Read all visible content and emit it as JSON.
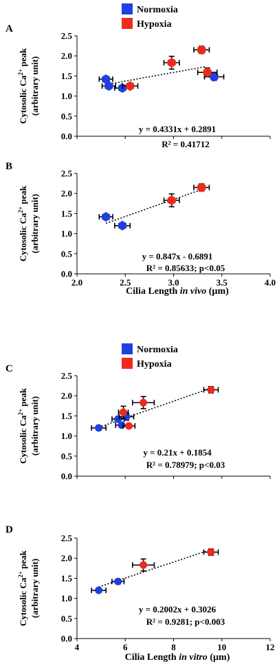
{
  "colors": {
    "normoxia": "#1f3fe0",
    "hypoxia": "#ee2a1a",
    "trend": "#000000"
  },
  "legend": {
    "normoxia": "Normoxia",
    "hypoxia": "Hypoxia"
  },
  "axes": {
    "ylabel_line1_pre": "Cytosolic Ca",
    "ylabel_sup": "2+",
    "ylabel_line1_post": " peak",
    "ylabel_line2": "(arbitrary unit)",
    "xlabel_invivo_pre": "Cilia Length ",
    "xlabel_invivo_em": "in vivo",
    "xlabel_invivo_post": " (µm)",
    "xlabel_invitro_pre": "Cilia Length ",
    "xlabel_invitro_em": "in vitro",
    "xlabel_invitro_post": " (µm)"
  },
  "chart_data": [
    {
      "panel": "A",
      "type": "scatter",
      "xlim": [
        2.0,
        4.0
      ],
      "ylim": [
        0,
        2.5
      ],
      "yticks": [
        "0.0",
        "0.5",
        "1.0",
        "1.5",
        "2.0",
        "2.5"
      ],
      "xticks": [],
      "equation": "y = 0.4331x + 0.2891",
      "r2": "R² = 0.41712",
      "trend": {
        "slope": 0.4331,
        "intercept": 0.2891,
        "x_range": [
          2.3,
          3.33
        ]
      },
      "series": [
        {
          "name": "Normoxia",
          "points": [
            {
              "x": 2.3,
              "y": 1.42,
              "xerr": 0.07,
              "yerr": 0.05
            },
            {
              "x": 2.33,
              "y": 1.25,
              "xerr": 0.07,
              "yerr": 0.04
            },
            {
              "x": 2.47,
              "y": 1.2,
              "xerr": 0.08,
              "yerr": 0.02
            },
            {
              "x": 3.42,
              "y": 1.48,
              "xerr": 0.1,
              "yerr": 0.09
            }
          ]
        },
        {
          "name": "Hypoxia",
          "points": [
            {
              "x": 2.55,
              "y": 1.25,
              "xerr": 0.08,
              "yerr": 0.04
            },
            {
              "x": 2.98,
              "y": 1.83,
              "xerr": 0.08,
              "yerr": 0.16
            },
            {
              "x": 3.29,
              "y": 2.15,
              "xerr": 0.08,
              "yerr": 0.09
            },
            {
              "x": 3.35,
              "y": 1.59,
              "xerr": 0.1,
              "yerr": 0.11
            }
          ]
        }
      ]
    },
    {
      "panel": "B",
      "type": "scatter",
      "xlim": [
        2.0,
        4.0
      ],
      "ylim": [
        0,
        2.5
      ],
      "yticks": [
        "0.0",
        "0.5",
        "1.0",
        "1.5",
        "2.0",
        "2.5"
      ],
      "xticks": [
        "2.0",
        "2.5",
        "3.0",
        "3.5",
        "4.0"
      ],
      "equation": "y = 0.847x - 0.6891",
      "r2": "R² = 0.85633;  p<0.05",
      "trend": {
        "slope": 0.847,
        "intercept": -0.6891,
        "x_range": [
          2.3,
          3.33
        ]
      },
      "series": [
        {
          "name": "Normoxia",
          "points": [
            {
              "x": 2.3,
              "y": 1.42,
              "xerr": 0.07,
              "yerr": 0.05
            },
            {
              "x": 2.47,
              "y": 1.2,
              "xerr": 0.08,
              "yerr": 0.02
            }
          ]
        },
        {
          "name": "Hypoxia",
          "points": [
            {
              "x": 2.98,
              "y": 1.83,
              "xerr": 0.08,
              "yerr": 0.16
            },
            {
              "x": 3.29,
              "y": 2.15,
              "xerr": 0.08,
              "yerr": 0.09
            }
          ]
        }
      ]
    },
    {
      "panel": "C",
      "type": "scatter",
      "xlim": [
        4,
        12
      ],
      "ylim": [
        0,
        2.5
      ],
      "yticks": [
        "0.0",
        "0.5",
        "1.0",
        "1.5",
        "2.0",
        "2.5"
      ],
      "xticks": [],
      "equation": "y = 0.21x + 0.1854",
      "r2": "R² = 0.78979;  p<0.03",
      "trend": {
        "slope": 0.21,
        "intercept": 0.1854,
        "x_range": [
          4.9,
          9.55
        ]
      },
      "series": [
        {
          "name": "Normoxia",
          "points": [
            {
              "x": 4.9,
              "y": 1.2,
              "xerr": 0.3,
              "yerr": 0.03
            },
            {
              "x": 5.7,
              "y": 1.42,
              "xerr": 0.25,
              "yerr": 0.06
            },
            {
              "x": 5.85,
              "y": 1.27,
              "xerr": 0.25,
              "yerr": 0.04
            },
            {
              "x": 6.05,
              "y": 1.48,
              "xerr": 0.3,
              "yerr": 0.09
            }
          ]
        },
        {
          "name": "Hypoxia",
          "points": [
            {
              "x": 5.92,
              "y": 1.59,
              "xerr": 0.2,
              "yerr": 0.15
            },
            {
              "x": 6.15,
              "y": 1.25,
              "xerr": 0.25,
              "yerr": 0.04
            },
            {
              "x": 6.75,
              "y": 1.83,
              "xerr": 0.45,
              "yerr": 0.15
            },
            {
              "x": 9.55,
              "y": 2.15,
              "xerr": 0.3,
              "yerr": 0.08
            }
          ]
        }
      ]
    },
    {
      "panel": "D",
      "type": "scatter",
      "xlim": [
        4,
        12
      ],
      "ylim": [
        0,
        2.5
      ],
      "yticks": [
        "0.0",
        "0.5",
        "1.0",
        "1.5",
        "2.0",
        "2.5"
      ],
      "xticks": [
        "4",
        "6",
        "8",
        "10",
        "12"
      ],
      "equation": "y = 0.2002x + 0.3026",
      "r2": "R² = 0.9281;  p<0.003",
      "trend": {
        "slope": 0.2002,
        "intercept": 0.3026,
        "x_range": [
          4.9,
          9.55
        ]
      },
      "series": [
        {
          "name": "Normoxia",
          "points": [
            {
              "x": 4.9,
              "y": 1.2,
              "xerr": 0.3,
              "yerr": 0.03
            },
            {
              "x": 5.7,
              "y": 1.42,
              "xerr": 0.25,
              "yerr": 0.06
            }
          ]
        },
        {
          "name": "Hypoxia",
          "points": [
            {
              "x": 6.75,
              "y": 1.83,
              "xerr": 0.45,
              "yerr": 0.15
            },
            {
              "x": 9.55,
              "y": 2.15,
              "xerr": 0.3,
              "yerr": 0.08
            }
          ]
        }
      ]
    }
  ]
}
